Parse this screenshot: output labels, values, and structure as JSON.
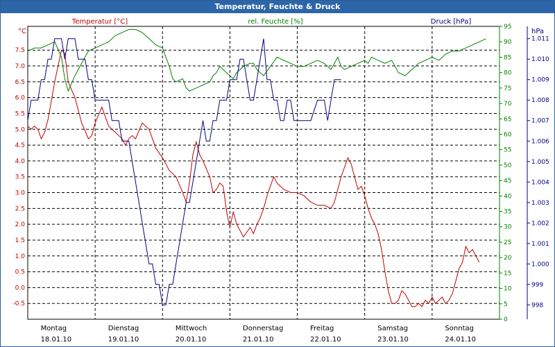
{
  "window": {
    "title": "Temperatur, Feuchte & Druck"
  },
  "chart_data": {
    "type": "line",
    "title": "Temperatur, Feuchte & Druck",
    "x": {
      "range": [
        0,
        7
      ],
      "labels": [
        "Montag",
        "Dienstag",
        "Mittwoch",
        "Donnerstag",
        "Freitag",
        "Samstag",
        "Sonntag"
      ],
      "dates": [
        "18.01.10",
        "19.01.10",
        "20.01.10",
        "21.01.10",
        "22.01.10",
        "23.01.10",
        "24.01.10"
      ]
    },
    "axes": {
      "left": {
        "label": "Temperatur [°C]",
        "unit": "°C",
        "range": [
          -1.0,
          8.25
        ],
        "ticks": [
          "7.5",
          "7.0",
          "6.5",
          "6.0",
          "5.5",
          "5.0",
          "4.5",
          "4.0",
          "3.5",
          "3.0",
          "2.5",
          "2.0",
          "1.5",
          "1.0",
          "0.5",
          "0.0",
          "-0.5"
        ],
        "tick_values": [
          7.5,
          7.0,
          6.5,
          6.0,
          5.5,
          5.0,
          4.5,
          4.0,
          3.5,
          3.0,
          2.5,
          2.0,
          1.5,
          1.0,
          0.5,
          0.0,
          -0.5
        ],
        "color": "#c00000"
      },
      "mid": {
        "label": "rel. Feuchte [%]",
        "unit": "%",
        "range": [
          0,
          95
        ],
        "ticks": [
          "95",
          "90",
          "85",
          "80",
          "75",
          "70",
          "65",
          "60",
          "55",
          "50",
          "45",
          "40",
          "35",
          "30",
          "25",
          "20",
          "15",
          "10",
          "5",
          "0"
        ],
        "tick_values": [
          95,
          90,
          85,
          80,
          75,
          70,
          65,
          60,
          55,
          50,
          45,
          40,
          35,
          30,
          25,
          20,
          15,
          10,
          5,
          0
        ],
        "color": "#008000"
      },
      "right": {
        "label": "Druck [hPa]",
        "unit": "hPa",
        "range": [
          997.3,
          1011.6
        ],
        "ticks": [
          "1.011",
          "1.010",
          "1.009",
          "1.008",
          "1.007",
          "1.006",
          "1.005",
          "1.004",
          "1.003",
          "1.002",
          "1.001",
          "1.000",
          "999",
          "998"
        ],
        "tick_values": [
          1011,
          1010,
          1009,
          1008,
          1007,
          1006,
          1005,
          1004,
          1003,
          1002,
          1001,
          1000,
          999,
          998
        ],
        "color": "#000080"
      }
    },
    "series": [
      {
        "name": "Temperatur [°C]",
        "axis": "left",
        "color": "#c00000",
        "points": [
          [
            0,
            5.1
          ],
          [
            0.05,
            5.0
          ],
          [
            0.1,
            5.1
          ],
          [
            0.15,
            5.0
          ],
          [
            0.2,
            4.7
          ],
          [
            0.25,
            4.9
          ],
          [
            0.3,
            5.3
          ],
          [
            0.35,
            5.9
          ],
          [
            0.4,
            6.5
          ],
          [
            0.45,
            7.0
          ],
          [
            0.5,
            7.5
          ],
          [
            0.55,
            7.4
          ],
          [
            0.6,
            6.5
          ],
          [
            0.7,
            6.0
          ],
          [
            0.8,
            5.2
          ],
          [
            0.9,
            4.7
          ],
          [
            0.95,
            4.8
          ],
          [
            1.0,
            5.2
          ],
          [
            1.1,
            5.7
          ],
          [
            1.2,
            5.1
          ],
          [
            1.3,
            4.9
          ],
          [
            1.4,
            4.7
          ],
          [
            1.45,
            4.5
          ],
          [
            1.5,
            4.7
          ],
          [
            1.55,
            4.8
          ],
          [
            1.6,
            4.7
          ],
          [
            1.7,
            5.2
          ],
          [
            1.8,
            5.0
          ],
          [
            1.9,
            4.4
          ],
          [
            2.0,
            4.1
          ],
          [
            2.1,
            3.7
          ],
          [
            2.2,
            3.5
          ],
          [
            2.3,
            3.0
          ],
          [
            2.35,
            2.7
          ],
          [
            2.4,
            3.3
          ],
          [
            2.45,
            4.2
          ],
          [
            2.5,
            4.6
          ],
          [
            2.55,
            4.2
          ],
          [
            2.6,
            4.0
          ],
          [
            2.7,
            3.5
          ],
          [
            2.75,
            3.0
          ],
          [
            2.8,
            3.1
          ],
          [
            2.85,
            3.3
          ],
          [
            2.9,
            3.2
          ],
          [
            2.95,
            2.4
          ],
          [
            3.0,
            1.9
          ],
          [
            3.05,
            2.4
          ],
          [
            3.1,
            2.0
          ],
          [
            3.2,
            1.6
          ],
          [
            3.3,
            1.9
          ],
          [
            3.35,
            1.7
          ],
          [
            3.4,
            2.0
          ],
          [
            3.45,
            2.2
          ],
          [
            3.5,
            2.5
          ],
          [
            3.55,
            2.9
          ],
          [
            3.6,
            3.2
          ],
          [
            3.65,
            3.5
          ],
          [
            3.7,
            3.3
          ],
          [
            3.8,
            3.1
          ],
          [
            3.9,
            3.0
          ],
          [
            4.0,
            3.0
          ],
          [
            4.1,
            2.9
          ],
          [
            4.2,
            2.7
          ],
          [
            4.3,
            2.6
          ],
          [
            4.4,
            2.6
          ],
          [
            4.5,
            2.5
          ],
          [
            4.55,
            2.7
          ],
          [
            4.6,
            3.1
          ],
          [
            4.65,
            3.5
          ],
          [
            4.7,
            3.8
          ],
          [
            4.75,
            4.1
          ],
          [
            4.8,
            3.9
          ],
          [
            4.85,
            3.5
          ],
          [
            4.9,
            3.1
          ],
          [
            4.95,
            3.2
          ],
          [
            5.0,
            2.9
          ],
          [
            5.05,
            2.5
          ],
          [
            5.1,
            2.2
          ],
          [
            5.15,
            2.0
          ],
          [
            5.2,
            1.7
          ],
          [
            5.25,
            1.2
          ],
          [
            5.3,
            0.5
          ],
          [
            5.35,
            -0.1
          ],
          [
            5.4,
            -0.5
          ],
          [
            5.45,
            -0.5
          ],
          [
            5.5,
            -0.4
          ],
          [
            5.55,
            -0.1
          ],
          [
            5.6,
            -0.2
          ],
          [
            5.65,
            -0.4
          ],
          [
            5.7,
            -0.6
          ],
          [
            5.75,
            -0.6
          ],
          [
            5.8,
            -0.5
          ],
          [
            5.85,
            -0.6
          ],
          [
            5.9,
            -0.4
          ],
          [
            5.95,
            -0.5
          ],
          [
            6.0,
            -0.3
          ],
          [
            6.05,
            -0.5
          ],
          [
            6.1,
            -0.4
          ],
          [
            6.15,
            -0.3
          ],
          [
            6.2,
            -0.5
          ],
          [
            6.25,
            -0.4
          ],
          [
            6.3,
            -0.2
          ],
          [
            6.35,
            0.2
          ],
          [
            6.4,
            0.6
          ],
          [
            6.45,
            0.8
          ],
          [
            6.5,
            1.3
          ],
          [
            6.55,
            1.1
          ],
          [
            6.6,
            1.2
          ],
          [
            6.65,
            1.0
          ],
          [
            6.7,
            0.8
          ]
        ]
      },
      {
        "name": "rel. Feuchte [%]",
        "axis": "mid",
        "color": "#008000",
        "points": [
          [
            0,
            87
          ],
          [
            0.1,
            88
          ],
          [
            0.2,
            88
          ],
          [
            0.3,
            89
          ],
          [
            0.4,
            90
          ],
          [
            0.5,
            85
          ],
          [
            0.55,
            78
          ],
          [
            0.6,
            74
          ],
          [
            0.7,
            79
          ],
          [
            0.8,
            83
          ],
          [
            0.9,
            87
          ],
          [
            1.0,
            88
          ],
          [
            1.1,
            89
          ],
          [
            1.2,
            90
          ],
          [
            1.3,
            92
          ],
          [
            1.4,
            93
          ],
          [
            1.5,
            94
          ],
          [
            1.6,
            94
          ],
          [
            1.7,
            93
          ],
          [
            1.8,
            91
          ],
          [
            1.9,
            89
          ],
          [
            2.0,
            88
          ],
          [
            2.1,
            82
          ],
          [
            2.15,
            78
          ],
          [
            2.2,
            77
          ],
          [
            2.3,
            78
          ],
          [
            2.35,
            75
          ],
          [
            2.4,
            74
          ],
          [
            2.5,
            75
          ],
          [
            2.6,
            76
          ],
          [
            2.7,
            77
          ],
          [
            2.75,
            79
          ],
          [
            2.8,
            80
          ],
          [
            2.85,
            82
          ],
          [
            2.9,
            81
          ],
          [
            3.0,
            79
          ],
          [
            3.05,
            78
          ],
          [
            3.1,
            80
          ],
          [
            3.2,
            82
          ],
          [
            3.3,
            83
          ],
          [
            3.35,
            83
          ],
          [
            3.4,
            81
          ],
          [
            3.5,
            79
          ],
          [
            3.6,
            82
          ],
          [
            3.7,
            85
          ],
          [
            3.8,
            84
          ],
          [
            3.9,
            83
          ],
          [
            4.0,
            82
          ],
          [
            4.1,
            82
          ],
          [
            4.2,
            83
          ],
          [
            4.3,
            84
          ],
          [
            4.4,
            83
          ],
          [
            4.5,
            81
          ],
          [
            4.55,
            83
          ],
          [
            4.6,
            85
          ],
          [
            4.65,
            82
          ],
          [
            4.7,
            81
          ],
          [
            4.8,
            82
          ],
          [
            4.9,
            83
          ],
          [
            5.0,
            84
          ],
          [
            5.05,
            83
          ],
          [
            5.1,
            85
          ],
          [
            5.2,
            84
          ],
          [
            5.3,
            83
          ],
          [
            5.4,
            84
          ],
          [
            5.5,
            80
          ],
          [
            5.6,
            79
          ],
          [
            5.7,
            81
          ],
          [
            5.8,
            83
          ],
          [
            5.9,
            84
          ],
          [
            6.0,
            85
          ],
          [
            6.1,
            84
          ],
          [
            6.2,
            86
          ],
          [
            6.3,
            87
          ],
          [
            6.4,
            87
          ],
          [
            6.5,
            88
          ],
          [
            6.6,
            89
          ],
          [
            6.7,
            90
          ],
          [
            6.8,
            91
          ]
        ]
      },
      {
        "name": "Druck [hPa]",
        "axis": "right",
        "color": "#000080",
        "points": [
          [
            0,
            1007
          ],
          [
            0.05,
            1008
          ],
          [
            0.1,
            1008
          ],
          [
            0.15,
            1008
          ],
          [
            0.2,
            1009
          ],
          [
            0.25,
            1009
          ],
          [
            0.3,
            1010
          ],
          [
            0.35,
            1010
          ],
          [
            0.4,
            1011
          ],
          [
            0.45,
            1011
          ],
          [
            0.5,
            1011
          ],
          [
            0.55,
            1010
          ],
          [
            0.6,
            1011
          ],
          [
            0.65,
            1011
          ],
          [
            0.7,
            1011
          ],
          [
            0.75,
            1010
          ],
          [
            0.8,
            1010
          ],
          [
            0.85,
            1010
          ],
          [
            0.9,
            1009
          ],
          [
            0.95,
            1009
          ],
          [
            1.0,
            1008
          ],
          [
            1.05,
            1008
          ],
          [
            1.1,
            1008
          ],
          [
            1.15,
            1008
          ],
          [
            1.2,
            1008
          ],
          [
            1.25,
            1007
          ],
          [
            1.3,
            1007
          ],
          [
            1.35,
            1007
          ],
          [
            1.4,
            1006
          ],
          [
            1.45,
            1006
          ],
          [
            1.5,
            1006
          ],
          [
            1.55,
            1005
          ],
          [
            1.6,
            1004
          ],
          [
            1.65,
            1003
          ],
          [
            1.7,
            1002
          ],
          [
            1.75,
            1001
          ],
          [
            1.8,
            1000
          ],
          [
            1.85,
            1000
          ],
          [
            1.9,
            999
          ],
          [
            1.95,
            999
          ],
          [
            2.0,
            998
          ],
          [
            2.05,
            998
          ],
          [
            2.1,
            999
          ],
          [
            2.15,
            999
          ],
          [
            2.2,
            1000
          ],
          [
            2.25,
            1001
          ],
          [
            2.3,
            1002
          ],
          [
            2.35,
            1003
          ],
          [
            2.4,
            1003
          ],
          [
            2.45,
            1004
          ],
          [
            2.5,
            1005
          ],
          [
            2.55,
            1006
          ],
          [
            2.6,
            1007
          ],
          [
            2.65,
            1006
          ],
          [
            2.7,
            1006
          ],
          [
            2.75,
            1007
          ],
          [
            2.8,
            1007
          ],
          [
            2.85,
            1008
          ],
          [
            2.9,
            1008
          ],
          [
            2.95,
            1008
          ],
          [
            3.0,
            1009
          ],
          [
            3.05,
            1009
          ],
          [
            3.1,
            1009
          ],
          [
            3.15,
            1010
          ],
          [
            3.2,
            1010
          ],
          [
            3.25,
            1009
          ],
          [
            3.3,
            1008
          ],
          [
            3.35,
            1008
          ],
          [
            3.4,
            1009
          ],
          [
            3.45,
            1010
          ],
          [
            3.5,
            1011
          ],
          [
            3.55,
            1009
          ],
          [
            3.6,
            1009
          ],
          [
            3.65,
            1008
          ],
          [
            3.7,
            1008
          ],
          [
            3.75,
            1007
          ],
          [
            3.8,
            1007
          ],
          [
            3.85,
            1008
          ],
          [
            3.9,
            1008
          ],
          [
            3.95,
            1007
          ],
          [
            4.0,
            1007
          ],
          [
            4.1,
            1007
          ],
          [
            4.2,
            1007
          ],
          [
            4.3,
            1008
          ],
          [
            4.4,
            1008
          ],
          [
            4.45,
            1007
          ],
          [
            4.5,
            1008
          ],
          [
            4.55,
            1009
          ],
          [
            4.6,
            1009
          ],
          [
            4.65,
            1009
          ]
        ]
      }
    ]
  }
}
